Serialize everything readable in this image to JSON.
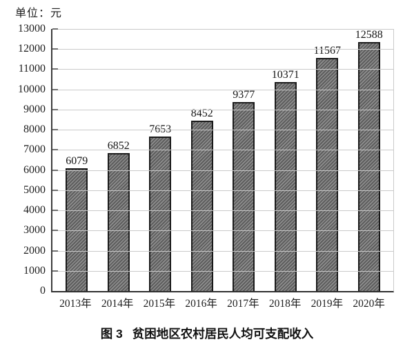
{
  "unit_label": "单位：元",
  "caption": {
    "figure_label": "图 3",
    "title": "贫困地区农村居民人均可支配收入"
  },
  "chart_data": {
    "type": "bar",
    "title": "图 3 贫困地区农村居民人均可支配收入",
    "unit_label": "单位：元",
    "categories": [
      "2013年",
      "2014年",
      "2015年",
      "2016年",
      "2017年",
      "2018年",
      "2019年",
      "2020年"
    ],
    "values": [
      6079,
      6852,
      7653,
      8452,
      9377,
      10371,
      11567,
      12588
    ],
    "xlabel": "",
    "ylabel": "",
    "ylim": [
      0,
      13000
    ],
    "ytick_step": 1000,
    "grid": "horizontal",
    "legend": "none",
    "bar_style": "diagonal-hatch",
    "colors": {
      "bar_base": "#5d5d5d",
      "bar_stripe": "#8f8f8f",
      "bar_border": "#1a1a1a",
      "gridline": "#c9c9c9",
      "axis": "#3a3a3a",
      "text": "#1c1c1c"
    }
  }
}
